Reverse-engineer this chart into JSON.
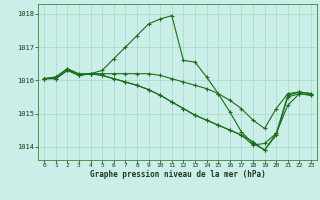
{
  "title": "Graphe pression niveau de la mer (hPa)",
  "bg_color": "#cceee8",
  "grid_color": "#aaddcc",
  "line_color": "#1a6e1a",
  "xlim": [
    -0.5,
    23.5
  ],
  "ylim": [
    1013.6,
    1018.3
  ],
  "yticks": [
    1014,
    1015,
    1016,
    1017,
    1018
  ],
  "xticks": [
    0,
    1,
    2,
    3,
    4,
    5,
    6,
    7,
    8,
    9,
    10,
    11,
    12,
    13,
    14,
    15,
    16,
    17,
    18,
    19,
    20,
    21,
    22,
    23
  ],
  "series": [
    {
      "x": [
        0,
        1,
        2,
        3,
        4,
        5,
        6,
        7,
        8,
        9,
        10,
        11,
        12,
        13,
        14,
        15,
        16,
        17,
        18,
        19,
        20,
        21,
        22,
        23
      ],
      "y": [
        1016.05,
        1016.1,
        1016.35,
        1016.2,
        1016.2,
        1016.3,
        1016.65,
        1017.0,
        1017.35,
        1017.7,
        1017.85,
        1017.95,
        1016.6,
        1016.55,
        1016.1,
        1015.6,
        1015.05,
        1014.45,
        1014.1,
        1013.9,
        1014.4,
        1015.55,
        1015.65,
        1015.6
      ]
    },
    {
      "x": [
        0,
        1,
        2,
        3,
        4,
        5,
        6,
        7,
        8,
        9,
        10,
        11,
        12,
        13,
        14,
        15,
        16,
        17,
        18,
        19,
        20,
        21,
        22,
        23
      ],
      "y": [
        1016.05,
        1016.1,
        1016.35,
        1016.15,
        1016.2,
        1016.2,
        1016.2,
        1016.2,
        1016.2,
        1016.2,
        1016.15,
        1016.05,
        1015.95,
        1015.85,
        1015.75,
        1015.6,
        1015.4,
        1015.15,
        1014.8,
        1014.55,
        1015.15,
        1015.6,
        1015.65,
        1015.6
      ]
    },
    {
      "x": [
        0,
        1,
        2,
        3,
        4,
        5,
        6,
        7,
        8,
        9,
        10,
        11,
        12,
        13,
        14,
        15,
        16,
        17,
        18,
        19,
        20,
        21,
        22,
        23
      ],
      "y": [
        1016.05,
        1016.05,
        1016.3,
        1016.15,
        1016.2,
        1016.15,
        1016.05,
        1015.95,
        1015.85,
        1015.72,
        1015.55,
        1015.35,
        1015.15,
        1014.95,
        1014.8,
        1014.65,
        1014.5,
        1014.35,
        1014.15,
        1013.9,
        1014.35,
        1015.5,
        1015.6,
        1015.55
      ]
    },
    {
      "x": [
        0,
        1,
        2,
        3,
        4,
        5,
        6,
        7,
        8,
        9,
        10,
        11,
        12,
        13,
        14,
        15,
        16,
        17,
        18,
        19,
        20,
        21,
        22,
        23
      ],
      "y": [
        1016.05,
        1016.05,
        1016.3,
        1016.15,
        1016.2,
        1016.15,
        1016.05,
        1015.95,
        1015.85,
        1015.72,
        1015.55,
        1015.35,
        1015.15,
        1014.95,
        1014.8,
        1014.65,
        1014.5,
        1014.35,
        1014.05,
        1014.1,
        1014.4,
        1015.25,
        1015.6,
        1015.55
      ]
    }
  ]
}
